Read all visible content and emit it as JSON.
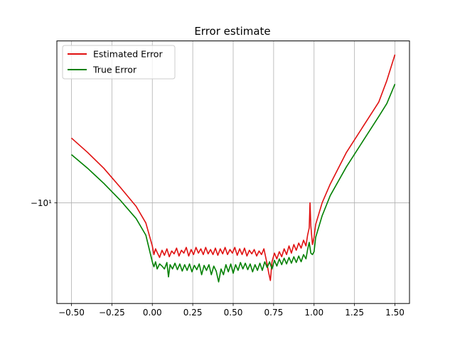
{
  "chart_data": {
    "type": "line",
    "title": "Error estimate",
    "xlabel": "",
    "ylabel": "",
    "xlim": [
      -0.59,
      1.59
    ],
    "ylim": [
      -11.4,
      -7.75
    ],
    "xticks": [
      -0.5,
      -0.25,
      0.0,
      0.25,
      0.5,
      0.75,
      1.0,
      1.25,
      1.5
    ],
    "xtick_labels": [
      "−0.50",
      "−0.25",
      "0.00",
      "0.25",
      "0.50",
      "0.75",
      "1.00",
      "1.25",
      "1.50"
    ],
    "yticks": [
      -10
    ],
    "ytick_labels": [
      "−10¹"
    ],
    "y_scale": "symlog",
    "grid": true,
    "legend_position": "top-left",
    "series": [
      {
        "name": "Estimated Error",
        "color": "#e01010",
        "points": [
          [
            -0.5,
            -9.1
          ],
          [
            -0.4,
            -9.3
          ],
          [
            -0.3,
            -9.52
          ],
          [
            -0.2,
            -9.78
          ],
          [
            -0.1,
            -10.05
          ],
          [
            -0.04,
            -10.28
          ],
          [
            0.0,
            -10.6
          ],
          [
            0.01,
            -10.72
          ],
          [
            0.02,
            -10.64
          ],
          [
            0.03,
            -10.69
          ],
          [
            0.045,
            -10.76
          ],
          [
            0.06,
            -10.66
          ],
          [
            0.075,
            -10.73
          ],
          [
            0.09,
            -10.64
          ],
          [
            0.105,
            -10.75
          ],
          [
            0.12,
            -10.67
          ],
          [
            0.135,
            -10.71
          ],
          [
            0.15,
            -10.63
          ],
          [
            0.165,
            -10.74
          ],
          [
            0.18,
            -10.66
          ],
          [
            0.195,
            -10.7
          ],
          [
            0.21,
            -10.62
          ],
          [
            0.225,
            -10.74
          ],
          [
            0.24,
            -10.65
          ],
          [
            0.255,
            -10.72
          ],
          [
            0.27,
            -10.62
          ],
          [
            0.285,
            -10.7
          ],
          [
            0.3,
            -10.64
          ],
          [
            0.315,
            -10.72
          ],
          [
            0.33,
            -10.62
          ],
          [
            0.345,
            -10.71
          ],
          [
            0.36,
            -10.65
          ],
          [
            0.375,
            -10.72
          ],
          [
            0.39,
            -10.63
          ],
          [
            0.405,
            -10.73
          ],
          [
            0.42,
            -10.64
          ],
          [
            0.435,
            -10.71
          ],
          [
            0.45,
            -10.62
          ],
          [
            0.465,
            -10.72
          ],
          [
            0.48,
            -10.65
          ],
          [
            0.495,
            -10.7
          ],
          [
            0.51,
            -10.62
          ],
          [
            0.525,
            -10.73
          ],
          [
            0.54,
            -10.64
          ],
          [
            0.555,
            -10.72
          ],
          [
            0.57,
            -10.63
          ],
          [
            0.585,
            -10.74
          ],
          [
            0.6,
            -10.66
          ],
          [
            0.615,
            -10.71
          ],
          [
            0.63,
            -10.65
          ],
          [
            0.645,
            -10.74
          ],
          [
            0.66,
            -10.67
          ],
          [
            0.675,
            -10.72
          ],
          [
            0.69,
            -10.64
          ],
          [
            0.705,
            -10.8
          ],
          [
            0.72,
            -10.98
          ],
          [
            0.73,
            -11.08
          ],
          [
            0.74,
            -10.82
          ],
          [
            0.755,
            -10.7
          ],
          [
            0.77,
            -10.78
          ],
          [
            0.785,
            -10.68
          ],
          [
            0.8,
            -10.75
          ],
          [
            0.815,
            -10.64
          ],
          [
            0.83,
            -10.72
          ],
          [
            0.845,
            -10.6
          ],
          [
            0.86,
            -10.7
          ],
          [
            0.875,
            -10.58
          ],
          [
            0.89,
            -10.66
          ],
          [
            0.905,
            -10.56
          ],
          [
            0.92,
            -10.63
          ],
          [
            0.935,
            -10.52
          ],
          [
            0.95,
            -10.6
          ],
          [
            0.96,
            -10.45
          ],
          [
            0.97,
            -10.35
          ],
          [
            0.975,
            -10.0
          ],
          [
            0.98,
            -10.32
          ],
          [
            0.99,
            -10.58
          ],
          [
            1.0,
            -10.48
          ],
          [
            1.01,
            -10.3
          ],
          [
            1.05,
            -10.0
          ],
          [
            1.1,
            -9.74
          ],
          [
            1.2,
            -9.3
          ],
          [
            1.3,
            -8.95
          ],
          [
            1.4,
            -8.6
          ],
          [
            1.45,
            -8.3
          ],
          [
            1.5,
            -7.94
          ]
        ]
      },
      {
        "name": "True Error",
        "color": "#008000",
        "points": [
          [
            -0.5,
            -9.33
          ],
          [
            -0.4,
            -9.52
          ],
          [
            -0.3,
            -9.73
          ],
          [
            -0.2,
            -9.96
          ],
          [
            -0.1,
            -10.22
          ],
          [
            -0.04,
            -10.45
          ],
          [
            0.0,
            -10.82
          ],
          [
            0.01,
            -10.89
          ],
          [
            0.02,
            -10.82
          ],
          [
            0.03,
            -10.92
          ],
          [
            0.045,
            -10.85
          ],
          [
            0.06,
            -10.88
          ],
          [
            0.075,
            -10.92
          ],
          [
            0.09,
            -10.83
          ],
          [
            0.1,
            -11.03
          ],
          [
            0.11,
            -10.86
          ],
          [
            0.125,
            -10.92
          ],
          [
            0.14,
            -10.84
          ],
          [
            0.155,
            -10.93
          ],
          [
            0.17,
            -10.85
          ],
          [
            0.185,
            -10.95
          ],
          [
            0.2,
            -10.86
          ],
          [
            0.215,
            -10.94
          ],
          [
            0.23,
            -10.85
          ],
          [
            0.245,
            -10.96
          ],
          [
            0.26,
            -10.87
          ],
          [
            0.275,
            -10.93
          ],
          [
            0.29,
            -10.85
          ],
          [
            0.305,
            -11.0
          ],
          [
            0.32,
            -10.87
          ],
          [
            0.335,
            -10.94
          ],
          [
            0.35,
            -10.86
          ],
          [
            0.365,
            -11.0
          ],
          [
            0.38,
            -10.88
          ],
          [
            0.395,
            -10.95
          ],
          [
            0.41,
            -11.1
          ],
          [
            0.425,
            -10.92
          ],
          [
            0.44,
            -11.0
          ],
          [
            0.455,
            -10.86
          ],
          [
            0.47,
            -10.96
          ],
          [
            0.485,
            -10.85
          ],
          [
            0.5,
            -10.98
          ],
          [
            0.515,
            -10.86
          ],
          [
            0.53,
            -10.94
          ],
          [
            0.545,
            -10.83
          ],
          [
            0.56,
            -10.92
          ],
          [
            0.575,
            -10.84
          ],
          [
            0.59,
            -10.93
          ],
          [
            0.605,
            -10.85
          ],
          [
            0.62,
            -10.96
          ],
          [
            0.635,
            -10.86
          ],
          [
            0.65,
            -10.94
          ],
          [
            0.665,
            -10.84
          ],
          [
            0.68,
            -10.94
          ],
          [
            0.695,
            -10.82
          ],
          [
            0.71,
            -10.9
          ],
          [
            0.725,
            -10.82
          ],
          [
            0.74,
            -10.92
          ],
          [
            0.755,
            -10.8
          ],
          [
            0.77,
            -10.88
          ],
          [
            0.785,
            -10.78
          ],
          [
            0.8,
            -10.86
          ],
          [
            0.815,
            -10.77
          ],
          [
            0.83,
            -10.85
          ],
          [
            0.845,
            -10.76
          ],
          [
            0.86,
            -10.84
          ],
          [
            0.875,
            -10.75
          ],
          [
            0.89,
            -10.83
          ],
          [
            0.905,
            -10.74
          ],
          [
            0.92,
            -10.82
          ],
          [
            0.935,
            -10.72
          ],
          [
            0.95,
            -10.78
          ],
          [
            0.96,
            -10.65
          ],
          [
            0.97,
            -10.55
          ],
          [
            0.98,
            -10.7
          ],
          [
            0.99,
            -10.72
          ],
          [
            1.0,
            -10.68
          ],
          [
            1.01,
            -10.48
          ],
          [
            1.05,
            -10.18
          ],
          [
            1.1,
            -9.9
          ],
          [
            1.2,
            -9.5
          ],
          [
            1.3,
            -9.15
          ],
          [
            1.4,
            -8.8
          ],
          [
            1.45,
            -8.62
          ],
          [
            1.5,
            -8.35
          ]
        ]
      }
    ]
  }
}
